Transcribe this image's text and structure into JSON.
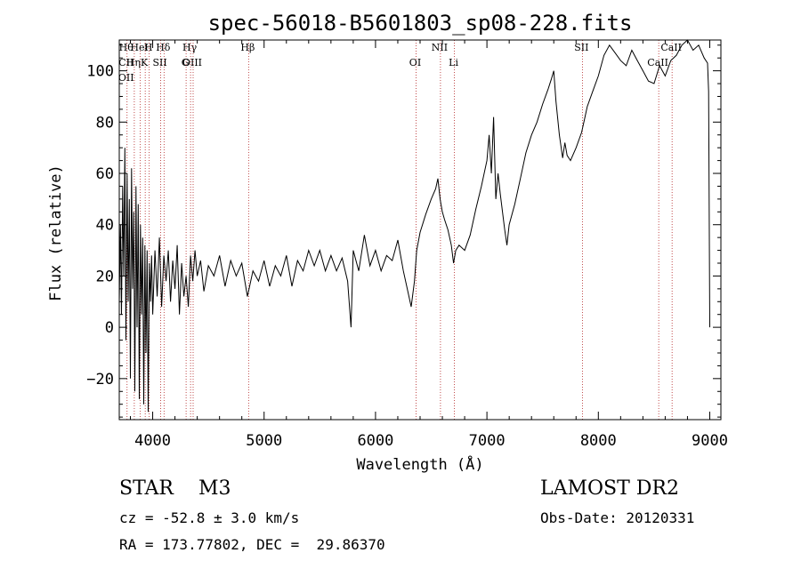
{
  "chart_data": {
    "type": "line",
    "title": "spec-56018-B5601803_sp08-228.fits",
    "xlabel": "Wavelength (Å)",
    "ylabel": "Flux (relative)",
    "xlim": [
      3700,
      9100
    ],
    "ylim": [
      -36,
      112
    ],
    "x_ticks": [
      4000,
      5000,
      6000,
      7000,
      8000,
      9000
    ],
    "y_ticks": [
      -20,
      0,
      20,
      40,
      60,
      80,
      100
    ],
    "grid": false,
    "series": [
      {
        "color": "#000000",
        "points": [
          [
            3700,
            10
          ],
          [
            3710,
            40
          ],
          [
            3720,
            5
          ],
          [
            3730,
            55
          ],
          [
            3740,
            20
          ],
          [
            3750,
            70
          ],
          [
            3760,
            -5
          ],
          [
            3770,
            60
          ],
          [
            3780,
            10
          ],
          [
            3790,
            50
          ],
          [
            3800,
            -20
          ],
          [
            3810,
            62
          ],
          [
            3820,
            15
          ],
          [
            3830,
            45
          ],
          [
            3840,
            -25
          ],
          [
            3850,
            55
          ],
          [
            3860,
            0
          ],
          [
            3870,
            48
          ],
          [
            3880,
            -28
          ],
          [
            3890,
            40
          ],
          [
            3900,
            5
          ],
          [
            3910,
            35
          ],
          [
            3920,
            -30
          ],
          [
            3930,
            32
          ],
          [
            3940,
            -10
          ],
          [
            3950,
            30
          ],
          [
            3960,
            -33
          ],
          [
            3970,
            25
          ],
          [
            3980,
            10
          ],
          [
            3990,
            28
          ],
          [
            4000,
            5
          ],
          [
            4020,
            30
          ],
          [
            4040,
            12
          ],
          [
            4060,
            35
          ],
          [
            4080,
            8
          ],
          [
            4100,
            28
          ],
          [
            4120,
            18
          ],
          [
            4140,
            30
          ],
          [
            4160,
            10
          ],
          [
            4180,
            26
          ],
          [
            4200,
            15
          ],
          [
            4220,
            32
          ],
          [
            4240,
            5
          ],
          [
            4260,
            25
          ],
          [
            4280,
            12
          ],
          [
            4300,
            20
          ],
          [
            4320,
            8
          ],
          [
            4340,
            28
          ],
          [
            4360,
            18
          ],
          [
            4380,
            30
          ],
          [
            4400,
            20
          ],
          [
            4430,
            26
          ],
          [
            4460,
            14
          ],
          [
            4500,
            24
          ],
          [
            4550,
            20
          ],
          [
            4600,
            28
          ],
          [
            4650,
            16
          ],
          [
            4700,
            26
          ],
          [
            4750,
            20
          ],
          [
            4800,
            25
          ],
          [
            4850,
            12
          ],
          [
            4900,
            22
          ],
          [
            4950,
            18
          ],
          [
            5000,
            26
          ],
          [
            5050,
            16
          ],
          [
            5100,
            24
          ],
          [
            5150,
            20
          ],
          [
            5200,
            28
          ],
          [
            5250,
            16
          ],
          [
            5300,
            26
          ],
          [
            5350,
            22
          ],
          [
            5400,
            30
          ],
          [
            5450,
            24
          ],
          [
            5500,
            30
          ],
          [
            5550,
            22
          ],
          [
            5600,
            28
          ],
          [
            5650,
            22
          ],
          [
            5700,
            27
          ],
          [
            5750,
            18
          ],
          [
            5780,
            0
          ],
          [
            5800,
            30
          ],
          [
            5850,
            22
          ],
          [
            5900,
            36
          ],
          [
            5950,
            24
          ],
          [
            6000,
            30
          ],
          [
            6050,
            22
          ],
          [
            6100,
            28
          ],
          [
            6150,
            26
          ],
          [
            6200,
            34
          ],
          [
            6250,
            22
          ],
          [
            6300,
            12
          ],
          [
            6320,
            8
          ],
          [
            6350,
            18
          ],
          [
            6370,
            30
          ],
          [
            6400,
            37
          ],
          [
            6450,
            44
          ],
          [
            6500,
            50
          ],
          [
            6540,
            54
          ],
          [
            6560,
            58
          ],
          [
            6580,
            50
          ],
          [
            6600,
            45
          ],
          [
            6620,
            42
          ],
          [
            6650,
            38
          ],
          [
            6680,
            32
          ],
          [
            6700,
            25
          ],
          [
            6720,
            30
          ],
          [
            6750,
            32
          ],
          [
            6800,
            30
          ],
          [
            6850,
            36
          ],
          [
            6900,
            46
          ],
          [
            6950,
            55
          ],
          [
            7000,
            65
          ],
          [
            7020,
            75
          ],
          [
            7040,
            60
          ],
          [
            7060,
            82
          ],
          [
            7080,
            50
          ],
          [
            7100,
            60
          ],
          [
            7120,
            52
          ],
          [
            7140,
            45
          ],
          [
            7160,
            38
          ],
          [
            7180,
            32
          ],
          [
            7200,
            40
          ],
          [
            7250,
            48
          ],
          [
            7300,
            58
          ],
          [
            7350,
            68
          ],
          [
            7400,
            75
          ],
          [
            7450,
            80
          ],
          [
            7500,
            87
          ],
          [
            7550,
            93
          ],
          [
            7580,
            97
          ],
          [
            7600,
            100
          ],
          [
            7620,
            88
          ],
          [
            7650,
            75
          ],
          [
            7680,
            66
          ],
          [
            7700,
            72
          ],
          [
            7720,
            67
          ],
          [
            7750,
            65
          ],
          [
            7800,
            70
          ],
          [
            7850,
            76
          ],
          [
            7880,
            82
          ],
          [
            7900,
            86
          ],
          [
            7950,
            92
          ],
          [
            8000,
            98
          ],
          [
            8050,
            106
          ],
          [
            8100,
            110
          ],
          [
            8150,
            107
          ],
          [
            8200,
            104
          ],
          [
            8250,
            102
          ],
          [
            8300,
            108
          ],
          [
            8350,
            104
          ],
          [
            8400,
            100
          ],
          [
            8450,
            96
          ],
          [
            8500,
            95
          ],
          [
            8550,
            102
          ],
          [
            8600,
            98
          ],
          [
            8650,
            104
          ],
          [
            8700,
            106
          ],
          [
            8750,
            110
          ],
          [
            8800,
            112
          ],
          [
            8850,
            108
          ],
          [
            8900,
            110
          ],
          [
            8950,
            105
          ],
          [
            8980,
            103
          ],
          [
            8990,
            92
          ],
          [
            9000,
            0
          ]
        ]
      }
    ],
    "lines": [
      {
        "x": 3770,
        "labels": [
          "Hθ",
          "CII",
          "OII"
        ]
      },
      {
        "x": 3835,
        "labels": [
          "Hη"
        ]
      },
      {
        "x": 3889,
        "labels": [
          "HeI"
        ]
      },
      {
        "x": 3933,
        "labels": [
          "K"
        ]
      },
      {
        "x": 3969,
        "labels": [
          "H"
        ]
      },
      {
        "x": 4072,
        "labels": [
          "SII"
        ]
      },
      {
        "x": 4102,
        "labels": [
          "Hδ"
        ]
      },
      {
        "x": 4300,
        "labels": [
          "G"
        ]
      },
      {
        "x": 4340,
        "labels": [
          "Hγ"
        ]
      },
      {
        "x": 4363,
        "labels": [
          "OIII"
        ]
      },
      {
        "x": 4861,
        "labels": [
          "Hβ"
        ]
      },
      {
        "x": 6364,
        "labels": [
          "OI"
        ]
      },
      {
        "x": 6583,
        "labels": [
          "NII"
        ]
      },
      {
        "x": 6708,
        "labels": [
          "Li"
        ]
      },
      {
        "x": 7857,
        "labels": [
          "SII"
        ]
      },
      {
        "x": 8542,
        "labels": [
          "CaII"
        ]
      },
      {
        "x": 8662,
        "labels": [
          "CaII"
        ]
      }
    ]
  },
  "info": {
    "object_type": "STAR    M3",
    "survey": "LAMOST DR2",
    "cz": "cz = -52.8 ± 3.0 km/s",
    "obs_date": "Obs-Date: 20120331",
    "radec": "RA = 173.77802, DEC =  29.86370"
  }
}
